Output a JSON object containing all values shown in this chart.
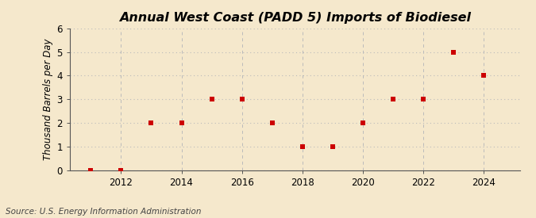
{
  "title": "Annual West Coast (PADD 5) Imports of Biodiesel",
  "ylabel": "Thousand Barrels per Day",
  "source": "Source: U.S. Energy Information Administration",
  "years": [
    2011,
    2012,
    2013,
    2014,
    2015,
    2016,
    2017,
    2018,
    2019,
    2020,
    2021,
    2022,
    2023,
    2024
  ],
  "values": [
    0,
    0,
    2,
    2,
    3,
    3,
    2,
    1,
    1,
    2,
    3,
    3,
    5,
    4
  ],
  "marker_color": "#cc0000",
  "marker": "s",
  "marker_size": 5,
  "background_color": "#f5e8cc",
  "plot_bg_color": "#f5e8cc",
  "grid_color": "#bbbbbb",
  "ylim": [
    0,
    6
  ],
  "yticks": [
    0,
    1,
    2,
    3,
    4,
    5,
    6
  ],
  "xlim": [
    2010.3,
    2025.2
  ],
  "xticks": [
    2012,
    2014,
    2016,
    2018,
    2020,
    2022,
    2024
  ],
  "title_fontsize": 11.5,
  "ylabel_fontsize": 8.5,
  "tick_fontsize": 8.5,
  "source_fontsize": 7.5
}
